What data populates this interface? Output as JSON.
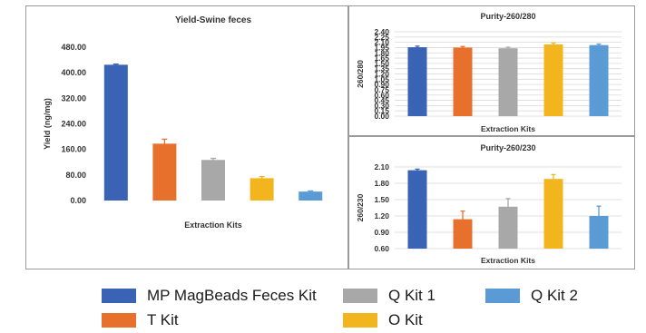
{
  "colors": {
    "mp_magbeads": "#3a62b5",
    "t_kit": "#e8702d",
    "q_kit_1": "#a8a8a8",
    "o_kit": "#f2b51e",
    "q_kit_2": "#5b9bd5"
  },
  "legend": {
    "items": [
      {
        "label": "MP MagBeads Feces  Kit",
        "color": "#3a62b5"
      },
      {
        "label": "T Kit",
        "color": "#e8702d"
      },
      {
        "label": "Q Kit 1",
        "color": "#a8a8a8"
      },
      {
        "label": "O Kit",
        "color": "#f2b51e"
      },
      {
        "label": "Q Kit 2",
        "color": "#5b9bd5"
      }
    ]
  },
  "chart_data": [
    {
      "type": "bar",
      "title": "Yield-Swine feces",
      "xlabel": "Extraction Kits",
      "ylabel": "Yield (ng/mg)",
      "categories": [
        "MP MagBeads Feces  Kit",
        "T Kit",
        "Q Kit 1",
        "O Kit",
        "Q Kit 2"
      ],
      "values": [
        425,
        178,
        127,
        70,
        28
      ],
      "errors": [
        2,
        14,
        5,
        5,
        2
      ],
      "colors": [
        "#3a62b5",
        "#e8702d",
        "#a8a8a8",
        "#f2b51e",
        "#5b9bd5"
      ],
      "ylim": [
        0,
        480
      ],
      "yticks": [
        0,
        80,
        160,
        240,
        320,
        400,
        480
      ],
      "ytick_labels": [
        "0.00",
        "80.00",
        "160.00",
        "240.00",
        "320.00",
        "400.00",
        "480.00"
      ],
      "grid": false
    },
    {
      "type": "bar",
      "title": "Purity-260/280",
      "xlabel": "Extraction Kits",
      "ylabel": "260/280",
      "categories": [
        "MP MagBeads Feces  Kit",
        "T Kit",
        "Q Kit 1",
        "O Kit",
        "Q Kit 2"
      ],
      "values": [
        1.96,
        1.95,
        1.93,
        2.04,
        2.02
      ],
      "errors": [
        0.03,
        0.03,
        0.03,
        0.04,
        0.03
      ],
      "colors": [
        "#3a62b5",
        "#e8702d",
        "#a8a8a8",
        "#f2b51e",
        "#5b9bd5"
      ],
      "ylim": [
        0,
        2.4
      ],
      "yticks": [
        0,
        0.15,
        0.3,
        0.45,
        0.6,
        0.75,
        0.9,
        1.05,
        1.2,
        1.35,
        1.5,
        1.65,
        1.8,
        1.95,
        2.1,
        2.25,
        2.4
      ],
      "ytick_labels": [
        "0.00",
        "0.15",
        "0.30",
        "0.45",
        "0.60",
        "0.75",
        "0.90",
        "1.05",
        "1.20",
        "1.35",
        "1.50",
        "1.65",
        "1.80",
        "1.95",
        "2.10",
        "2.25",
        "2.40"
      ],
      "grid": true
    },
    {
      "type": "bar",
      "title": "Purity-260/230",
      "xlabel": "Extraction Kits",
      "ylabel": "260/230",
      "categories": [
        "MP MagBeads Feces  Kit",
        "T Kit",
        "Q Kit 1",
        "O Kit",
        "Q Kit 2"
      ],
      "values": [
        2.04,
        1.14,
        1.37,
        1.88,
        1.2
      ],
      "errors": [
        0.02,
        0.15,
        0.15,
        0.08,
        0.18
      ],
      "colors": [
        "#3a62b5",
        "#e8702d",
        "#a8a8a8",
        "#f2b51e",
        "#5b9bd5"
      ],
      "ylim": [
        0.6,
        2.1
      ],
      "yticks": [
        0.6,
        0.9,
        1.2,
        1.5,
        1.8,
        2.1
      ],
      "ytick_labels": [
        "0.60",
        "0.90",
        "1.20",
        "1.50",
        "1.80",
        "2.10"
      ],
      "grid": true
    }
  ]
}
